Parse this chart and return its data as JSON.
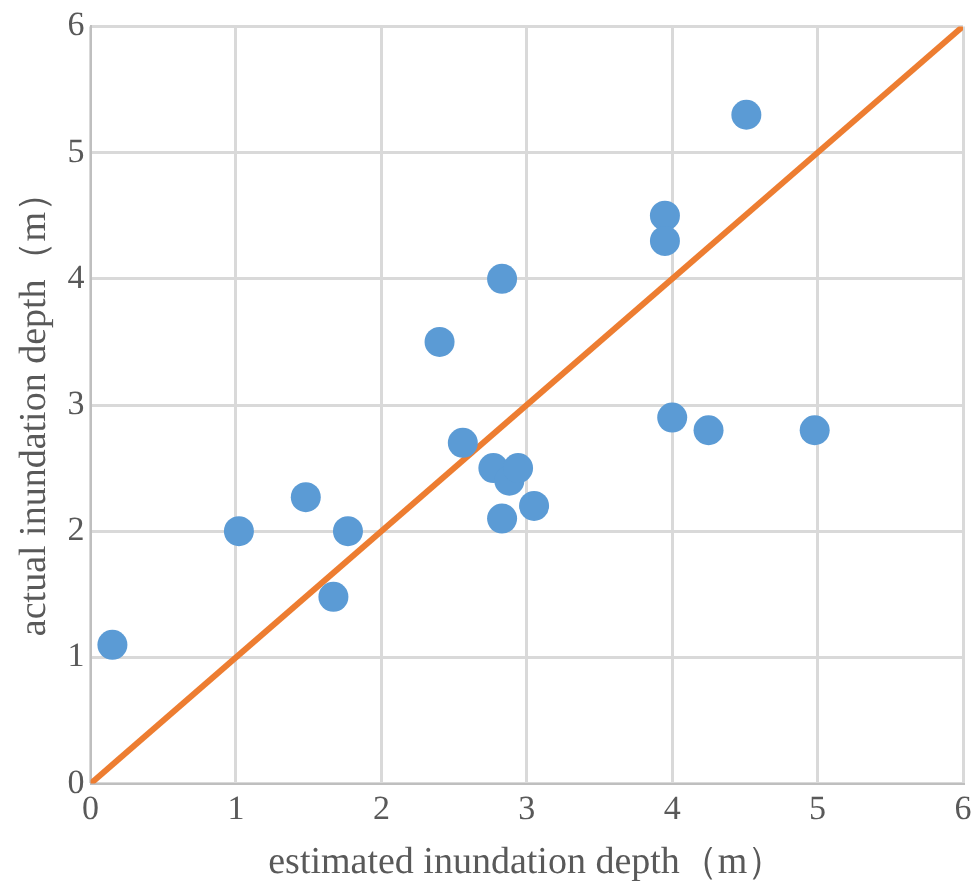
{
  "chart_data": {
    "type": "scatter",
    "xlabel": "estimated inundation depth（m）",
    "ylabel": "actual inundation depth（m）",
    "xlim": [
      0,
      6
    ],
    "ylim": [
      0,
      6
    ],
    "xticks": [
      0,
      1,
      2,
      3,
      4,
      5,
      6
    ],
    "yticks": [
      0,
      1,
      2,
      3,
      4,
      5,
      6
    ],
    "grid": true,
    "legend": false,
    "marker": "circle",
    "series": [
      {
        "type": "scatter",
        "color": "#5b9bd5",
        "x": [
          0.15,
          1.02,
          1.48,
          1.77,
          1.67,
          2.4,
          2.56,
          2.83,
          2.77,
          2.88,
          2.94,
          2.83,
          3.05,
          3.95,
          3.95,
          4.0,
          4.25,
          4.98,
          4.51
        ],
        "values": [
          1.1,
          2.0,
          2.27,
          2.0,
          1.48,
          3.5,
          2.7,
          4.0,
          2.5,
          2.4,
          2.5,
          2.1,
          2.2,
          4.5,
          4.3,
          2.9,
          2.8,
          2.8,
          5.3
        ]
      },
      {
        "type": "line",
        "color": "#ed7d31",
        "x": [
          0,
          6
        ],
        "values": [
          0,
          6
        ],
        "marker": "none"
      }
    ]
  }
}
